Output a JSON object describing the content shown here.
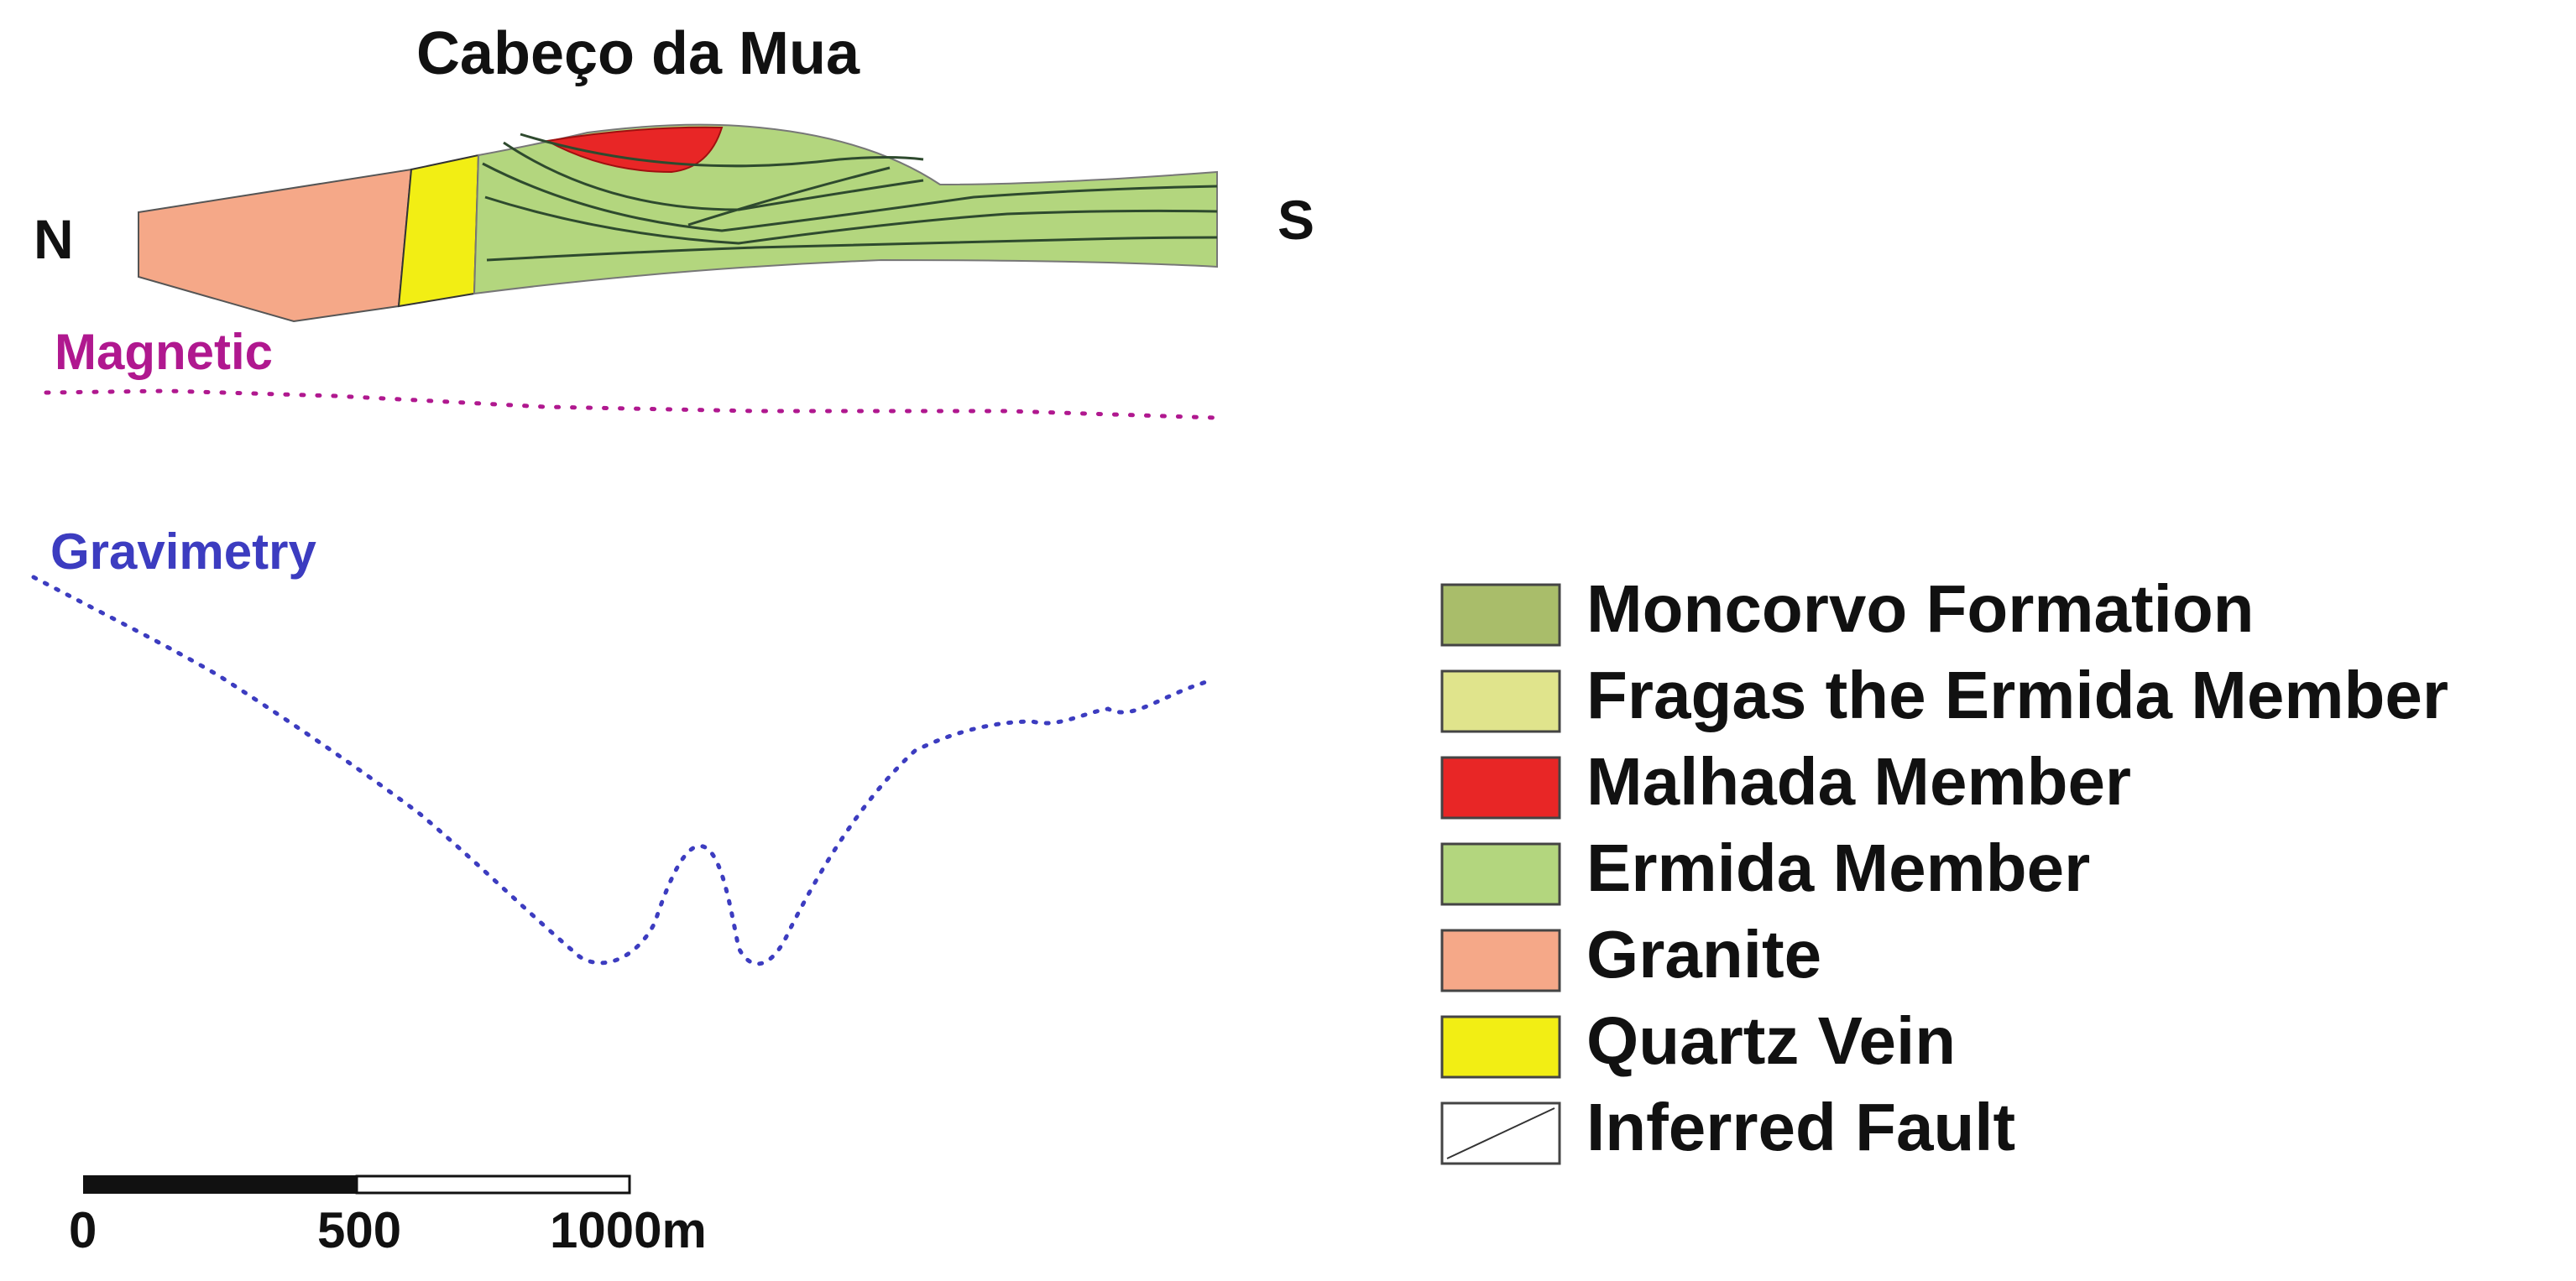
{
  "title": "Cabeço da Mua",
  "direction_left": "N",
  "direction_right": "S",
  "profiles": {
    "magnetic": {
      "label": "Magnetic",
      "color": "#b0188f"
    },
    "gravimetry": {
      "label": "Gravimetry",
      "color": "#3c3cc0"
    }
  },
  "units": {
    "moncorvo": {
      "name": "Moncorvo Formation",
      "color": "#a9bd6a"
    },
    "fragas": {
      "name": "Fragas the Ermida Member",
      "color": "#e0e48c"
    },
    "malhada": {
      "name": "Malhada Member",
      "color": "#e82626"
    },
    "ermida": {
      "name": "Ermida Member",
      "color": "#b3d67e"
    },
    "granite": {
      "name": "Granite",
      "color": "#f5a888"
    },
    "quartz": {
      "name": "Quartz Vein",
      "color": "#f2ee14"
    }
  },
  "legend": [
    {
      "label": "Moncorvo Formation",
      "color": "#a9bd6a",
      "icon": "swatch"
    },
    {
      "label": "Fragas the Ermida Member",
      "color": "#e0e48c",
      "icon": "swatch"
    },
    {
      "label": "Malhada Member",
      "color": "#e82626",
      "icon": "swatch"
    },
    {
      "label": "Ermida Member",
      "color": "#b3d67e",
      "icon": "swatch"
    },
    {
      "label": "Granite",
      "color": "#f5a888",
      "icon": "swatch"
    },
    {
      "label": "Quartz Vein",
      "color": "#f2ee14",
      "icon": "swatch"
    },
    {
      "label": "Inferred Fault",
      "color": "#ffffff",
      "icon": "fault-line"
    }
  ],
  "scale_bar": {
    "ticks": [
      "0",
      "500",
      "1000m"
    ]
  }
}
